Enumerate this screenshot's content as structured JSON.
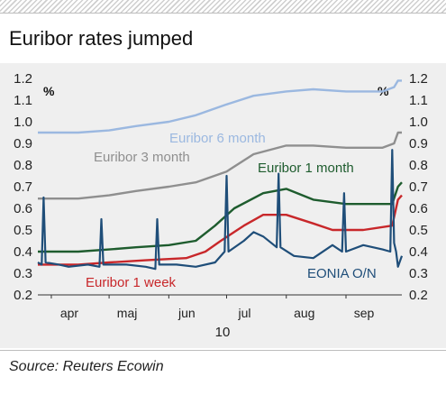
{
  "title": "Euribor rates jumped",
  "source": "Source: Reuters Ecowin",
  "chart_data": {
    "type": "line",
    "unit_left": "%",
    "unit_right": "%",
    "year_label": "10",
    "ylim": [
      0.2,
      1.2
    ],
    "yticks": [
      0.2,
      0.3,
      0.4,
      0.5,
      0.6,
      0.7,
      0.8,
      0.9,
      1.0,
      1.1,
      1.2
    ],
    "ytick_labels": [
      "0.2",
      "0.3",
      "0.4",
      "0.5",
      "0.6",
      "0.7",
      "0.8",
      "0.9",
      "1.0",
      "1.1",
      "1.2"
    ],
    "x_range": [
      "2010-03-25",
      "2010-09-30"
    ],
    "month_labels": [
      {
        "label": "apr",
        "date": "2010-04-01"
      },
      {
        "label": "maj",
        "date": "2010-05-01"
      },
      {
        "label": "jun",
        "date": "2010-06-01"
      },
      {
        "label": "jul",
        "date": "2010-07-01"
      },
      {
        "label": "aug",
        "date": "2010-08-01"
      },
      {
        "label": "sep",
        "date": "2010-09-01"
      }
    ],
    "grid": false,
    "series": [
      {
        "name": "Euribor 6 month",
        "color": "#9bb8e0",
        "points": [
          [
            "2010-03-25",
            0.95
          ],
          [
            "2010-04-15",
            0.95
          ],
          [
            "2010-05-01",
            0.96
          ],
          [
            "2010-05-15",
            0.98
          ],
          [
            "2010-06-01",
            1.0
          ],
          [
            "2010-06-15",
            1.03
          ],
          [
            "2010-07-01",
            1.08
          ],
          [
            "2010-07-15",
            1.12
          ],
          [
            "2010-08-01",
            1.14
          ],
          [
            "2010-08-15",
            1.15
          ],
          [
            "2010-09-01",
            1.14
          ],
          [
            "2010-09-20",
            1.14
          ],
          [
            "2010-09-26",
            1.16
          ],
          [
            "2010-09-28",
            1.19
          ],
          [
            "2010-09-30",
            1.19
          ]
        ]
      },
      {
        "name": "Euribor 3 month",
        "color": "#8f8f8f",
        "points": [
          [
            "2010-03-25",
            0.645
          ],
          [
            "2010-04-15",
            0.645
          ],
          [
            "2010-05-01",
            0.66
          ],
          [
            "2010-05-15",
            0.68
          ],
          [
            "2010-06-01",
            0.7
          ],
          [
            "2010-06-15",
            0.72
          ],
          [
            "2010-07-01",
            0.77
          ],
          [
            "2010-07-15",
            0.85
          ],
          [
            "2010-08-01",
            0.89
          ],
          [
            "2010-08-15",
            0.89
          ],
          [
            "2010-09-01",
            0.88
          ],
          [
            "2010-09-20",
            0.88
          ],
          [
            "2010-09-26",
            0.9
          ],
          [
            "2010-09-28",
            0.95
          ],
          [
            "2010-09-30",
            0.95
          ]
        ]
      },
      {
        "name": "Euribor 1 month",
        "color": "#1e5c2e",
        "points": [
          [
            "2010-03-25",
            0.4
          ],
          [
            "2010-04-15",
            0.4
          ],
          [
            "2010-05-01",
            0.41
          ],
          [
            "2010-05-15",
            0.42
          ],
          [
            "2010-06-01",
            0.43
          ],
          [
            "2010-06-15",
            0.45
          ],
          [
            "2010-06-25",
            0.52
          ],
          [
            "2010-07-05",
            0.6
          ],
          [
            "2010-07-20",
            0.67
          ],
          [
            "2010-08-01",
            0.69
          ],
          [
            "2010-08-15",
            0.64
          ],
          [
            "2010-09-01",
            0.62
          ],
          [
            "2010-09-25",
            0.62
          ],
          [
            "2010-09-28",
            0.7
          ],
          [
            "2010-09-30",
            0.72
          ]
        ]
      },
      {
        "name": "Euribor 1 week",
        "color": "#c8272a",
        "points": [
          [
            "2010-03-25",
            0.34
          ],
          [
            "2010-04-15",
            0.34
          ],
          [
            "2010-05-01",
            0.35
          ],
          [
            "2010-05-20",
            0.36
          ],
          [
            "2010-06-10",
            0.37
          ],
          [
            "2010-06-20",
            0.4
          ],
          [
            "2010-06-28",
            0.45
          ],
          [
            "2010-07-10",
            0.52
          ],
          [
            "2010-07-20",
            0.57
          ],
          [
            "2010-08-01",
            0.57
          ],
          [
            "2010-08-15",
            0.53
          ],
          [
            "2010-08-25",
            0.5
          ],
          [
            "2010-09-10",
            0.5
          ],
          [
            "2010-09-25",
            0.52
          ],
          [
            "2010-09-28",
            0.64
          ],
          [
            "2010-09-30",
            0.66
          ]
        ]
      },
      {
        "name": "EONIA O/N",
        "color": "#1f4e79",
        "points": [
          [
            "2010-03-25",
            0.35
          ],
          [
            "2010-03-27",
            0.34
          ],
          [
            "2010-03-28",
            0.65
          ],
          [
            "2010-03-29",
            0.35
          ],
          [
            "2010-04-05",
            0.34
          ],
          [
            "2010-04-10",
            0.33
          ],
          [
            "2010-04-20",
            0.34
          ],
          [
            "2010-04-26",
            0.33
          ],
          [
            "2010-04-27",
            0.55
          ],
          [
            "2010-04-28",
            0.34
          ],
          [
            "2010-05-10",
            0.34
          ],
          [
            "2010-05-20",
            0.33
          ],
          [
            "2010-05-25",
            0.32
          ],
          [
            "2010-05-26",
            0.55
          ],
          [
            "2010-05-27",
            0.34
          ],
          [
            "2010-06-05",
            0.34
          ],
          [
            "2010-06-15",
            0.33
          ],
          [
            "2010-06-25",
            0.35
          ],
          [
            "2010-06-30",
            0.4
          ],
          [
            "2010-07-01",
            0.75
          ],
          [
            "2010-07-02",
            0.4
          ],
          [
            "2010-07-10",
            0.45
          ],
          [
            "2010-07-15",
            0.49
          ],
          [
            "2010-07-20",
            0.47
          ],
          [
            "2010-07-27",
            0.42
          ],
          [
            "2010-07-28",
            0.76
          ],
          [
            "2010-07-29",
            0.42
          ],
          [
            "2010-08-05",
            0.38
          ],
          [
            "2010-08-15",
            0.37
          ],
          [
            "2010-08-25",
            0.43
          ],
          [
            "2010-08-30",
            0.4
          ],
          [
            "2010-08-31",
            0.67
          ],
          [
            "2010-09-01",
            0.4
          ],
          [
            "2010-09-10",
            0.43
          ],
          [
            "2010-09-20",
            0.41
          ],
          [
            "2010-09-24",
            0.4
          ],
          [
            "2010-09-25",
            0.87
          ],
          [
            "2010-09-26",
            0.44
          ],
          [
            "2010-09-27",
            0.4
          ],
          [
            "2010-09-28",
            0.33
          ],
          [
            "2010-09-30",
            0.38
          ]
        ]
      }
    ],
    "annotations": [
      {
        "text": "Euribor 6 month",
        "series": "Euribor 6 month"
      },
      {
        "text": "Euribor 3 month",
        "series": "Euribor 3 month"
      },
      {
        "text": "Euribor 1 month",
        "series": "Euribor 1 month"
      },
      {
        "text": "Euribor 1 week",
        "series": "Euribor 1 week"
      },
      {
        "text": "EONIA O/N",
        "series": "EONIA O/N"
      }
    ]
  }
}
